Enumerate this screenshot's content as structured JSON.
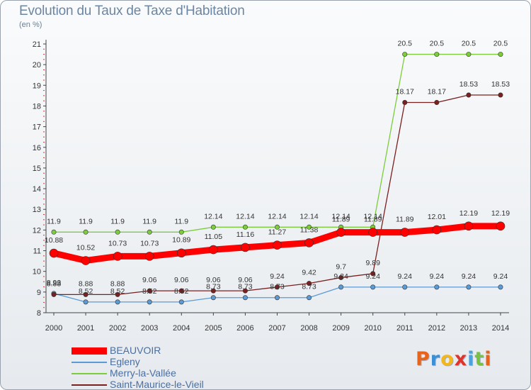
{
  "chart_data": {
    "type": "line",
    "title": "Evolution du Taux de Taxe d'Habitation",
    "subtitle": "(en %)",
    "x": [
      "2000",
      "2001",
      "2002",
      "2003",
      "2004",
      "2005",
      "2006",
      "2007",
      "2008",
      "2009",
      "2010",
      "2011",
      "2012",
      "2013",
      "2014"
    ],
    "y_ticks": [
      "8",
      "9",
      "10",
      "11",
      "12",
      "13",
      "14",
      "15",
      "16",
      "17",
      "18",
      "19",
      "20",
      "21"
    ],
    "ylim": [
      8,
      21
    ],
    "grid": false,
    "legend_position": "bottom-left",
    "series": [
      {
        "name": "BEAUVOIR",
        "color": "#ff0000",
        "values": [
          10.88,
          10.52,
          10.73,
          10.73,
          10.89,
          11.05,
          11.16,
          11.27,
          11.38,
          11.89,
          11.89,
          11.89,
          12.01,
          12.19,
          12.19
        ],
        "labels": [
          "10.88",
          "10.52",
          "10.73",
          "10.73",
          "10.89",
          "11.05",
          "11.16",
          "11.27",
          "11.38",
          "11.89",
          "11.89",
          "11.89",
          "12.01",
          "12.19",
          "12.19"
        ]
      },
      {
        "name": "Egleny",
        "color": "#5b9bd5",
        "values": [
          8.93,
          8.52,
          8.52,
          8.52,
          8.52,
          8.73,
          8.73,
          8.73,
          8.73,
          9.24,
          9.24,
          9.24,
          9.24,
          9.24,
          9.24
        ],
        "labels": [
          "8.93",
          "8.52",
          "8.52",
          "8.52",
          "8.52",
          "8.73",
          "8.73",
          "8.73",
          "8.73",
          "9.24",
          "9.24",
          "9.24",
          "9.24",
          "9.24",
          "9.24"
        ]
      },
      {
        "name": "Merry-la-Vallée",
        "color": "#7ccd3b",
        "values": [
          11.9,
          11.9,
          11.9,
          11.9,
          11.9,
          12.14,
          12.14,
          12.14,
          12.14,
          12.14,
          12.14,
          20.5,
          20.5,
          20.5,
          20.5
        ],
        "labels": [
          "11.9",
          "11.9",
          "11.9",
          "11.9",
          "11.9",
          "12.14",
          "12.14",
          "12.14",
          "12.14",
          "12.14",
          "12.14",
          "20.5",
          "20.5",
          "20.5",
          "20.5"
        ]
      },
      {
        "name": "Saint-Maurice-le-Vieil",
        "color": "#7a2020",
        "values": [
          8.88,
          8.88,
          8.88,
          9.06,
          9.06,
          9.06,
          9.06,
          9.24,
          9.42,
          9.7,
          9.89,
          18.17,
          18.17,
          18.53,
          18.53
        ],
        "labels": [
          "8.88",
          "8.88",
          "8.88",
          "9.06",
          "9.06",
          "9.06",
          "9.06",
          "9.24",
          "9.42",
          "9.7",
          "9.89",
          "18.17",
          "18.17",
          "18.53",
          "18.53"
        ]
      }
    ]
  },
  "logo": {
    "letters": [
      "P",
      "r",
      "o",
      "x",
      "i",
      "t",
      "i"
    ],
    "colors": [
      "#e8641b",
      "#3a8fd6",
      "#f2b71c",
      "#e0342a",
      "#4aa3df",
      "#7ac143",
      "#e8641b"
    ]
  }
}
